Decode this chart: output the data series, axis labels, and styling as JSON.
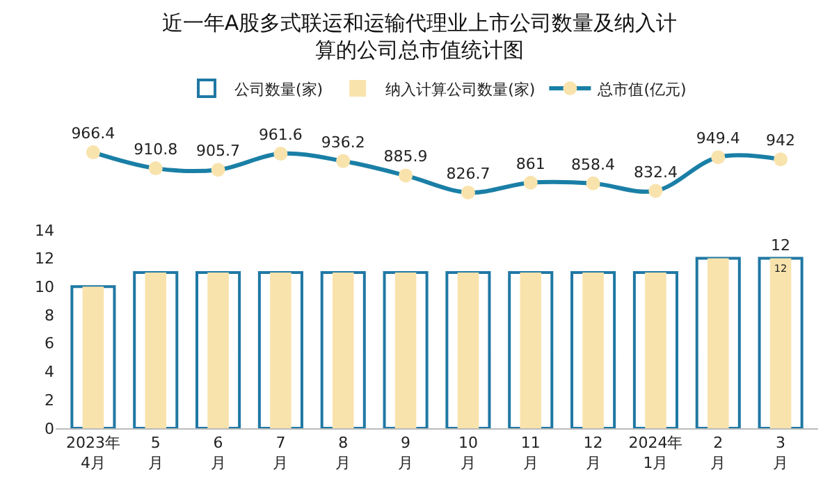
{
  "chart_data": [
    {
      "type": "line",
      "title": "近一年A股多式联运和运输代理业上市公司数量及纳入计算的公司总市值统计图",
      "categories": [
        null,
        null,
        null,
        null,
        null,
        null,
        null,
        null,
        null,
        null,
        null,
        null
      ],
      "series": [
        {
          "name": "总市值(亿元)",
          "color": "#1a7fa6",
          "values": [
            966.4,
            910.8,
            905.7,
            961.6,
            936.2,
            885.9,
            826.7,
            861,
            858.4,
            832.4,
            949.4,
            942
          ]
        }
      ],
      "marker": "circle",
      "data_labels": true,
      "tick_labels": false,
      "legend": "top"
    },
    {
      "type": "bar",
      "categories": [
        "2023年\n4月",
        "5\n月",
        "6\n月",
        "7\n月",
        "8\n月",
        "9\n月",
        "10\n月",
        "11\n月",
        "12\n月",
        "2024年\n1月",
        "2\n月",
        "3\n月"
      ],
      "series": [
        {
          "name": "公司数量(家)",
          "color": "#1f78a4",
          "values": [
            10,
            11,
            11,
            11,
            11,
            11,
            11,
            11,
            11,
            11,
            12,
            12
          ],
          "value_labels": [
            null,
            null,
            null,
            null,
            null,
            null,
            null,
            null,
            null,
            null,
            null,
            "12"
          ]
        },
        {
          "name": "纳入计算公司数量(家)",
          "color": "#f9e3ad",
          "values": [
            10,
            11,
            11,
            11,
            11,
            11,
            11,
            11,
            11,
            11,
            12,
            12
          ],
          "value_labels": [
            null,
            null,
            null,
            null,
            null,
            null,
            null,
            null,
            null,
            null,
            null,
            "12"
          ]
        }
      ],
      "ylim": [
        0,
        14
      ],
      "yticks": [
        0,
        2,
        4,
        6,
        8,
        10,
        12,
        14
      ],
      "legend": "top"
    }
  ]
}
